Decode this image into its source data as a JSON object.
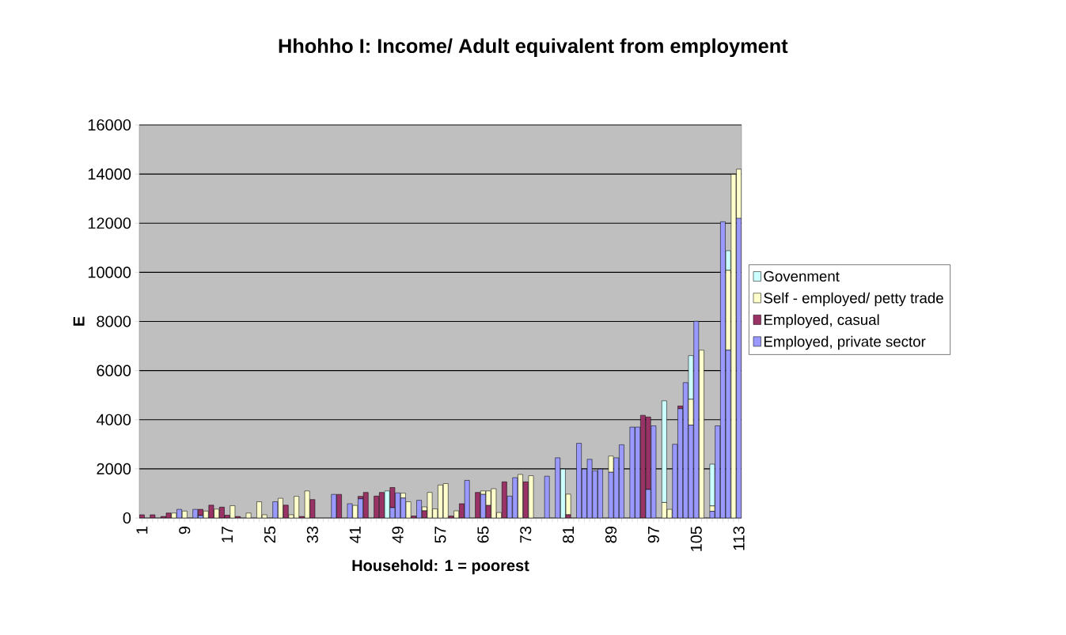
{
  "chart_data": {
    "type": "bar",
    "stacked": true,
    "title": "Hhohho I: Income/ Adult equivalent from employment",
    "xlabel": "Household: 1 = poorest",
    "ylabel": "E",
    "categories": [
      "1",
      null,
      null,
      null,
      null,
      null,
      null,
      null,
      "9",
      null,
      null,
      null,
      null,
      null,
      null,
      null,
      "17",
      null,
      null,
      null,
      null,
      null,
      null,
      null,
      "25",
      null,
      null,
      null,
      null,
      null,
      null,
      null,
      "33",
      null,
      null,
      null,
      null,
      null,
      null,
      null,
      "41",
      null,
      null,
      null,
      null,
      null,
      null,
      null,
      "49",
      null,
      null,
      null,
      null,
      null,
      null,
      null,
      "57",
      null,
      null,
      null,
      null,
      null,
      null,
      null,
      "65",
      null,
      null,
      null,
      null,
      null,
      null,
      null,
      "73",
      null,
      null,
      null,
      null,
      null,
      null,
      null,
      "81",
      null,
      null,
      null,
      null,
      null,
      null,
      null,
      "89",
      null,
      null,
      null,
      null,
      null,
      null,
      null,
      "97",
      null,
      null,
      null,
      null,
      null,
      null,
      null,
      "105",
      null,
      null,
      null,
      null,
      null,
      null,
      null,
      "113"
    ],
    "ylim": [
      0,
      16000
    ],
    "yticks": [
      0,
      2000,
      4000,
      6000,
      8000,
      10000,
      12000,
      14000,
      16000
    ],
    "grid": "y",
    "legend": "right",
    "series": [
      {
        "name": "Employed, private sector",
        "color": "#9999ff",
        "values": [
          0,
          0,
          0,
          0,
          0,
          0,
          0,
          350,
          0,
          0,
          350,
          100,
          0,
          0,
          0,
          0,
          0,
          0,
          0,
          0,
          0,
          0,
          0,
          0,
          0,
          660,
          0,
          0,
          0,
          0,
          0,
          0,
          0,
          0,
          0,
          0,
          960,
          0,
          0,
          580,
          0,
          780,
          0,
          0,
          0,
          0,
          0,
          420,
          1020,
          810,
          0,
          0,
          720,
          0,
          0,
          0,
          0,
          0,
          0,
          0,
          0,
          1530,
          0,
          0,
          960,
          0,
          0,
          0,
          0,
          890,
          1640,
          0,
          0,
          0,
          0,
          0,
          1700,
          0,
          2450,
          0,
          0,
          0,
          3040,
          1990,
          2390,
          1920,
          1990,
          0,
          1860,
          2450,
          2980,
          0,
          3700,
          3700,
          0,
          1160,
          3750,
          0,
          0,
          0,
          3000,
          4450,
          5510,
          3780,
          8010,
          0,
          0,
          270,
          3750,
          12060,
          6830,
          0,
          12200
        ]
      },
      {
        "name": "Employed, casual",
        "color": "#993366",
        "values": [
          130,
          0,
          130,
          0,
          60,
          200,
          0,
          0,
          0,
          0,
          0,
          250,
          0,
          520,
          0,
          440,
          110,
          0,
          60,
          0,
          0,
          0,
          0,
          0,
          0,
          0,
          0,
          520,
          0,
          0,
          60,
          0,
          750,
          0,
          0,
          0,
          0,
          960,
          0,
          0,
          0,
          100,
          1040,
          0,
          890,
          1040,
          0,
          820,
          0,
          0,
          0,
          80,
          0,
          290,
          0,
          0,
          0,
          0,
          80,
          0,
          580,
          0,
          0,
          1040,
          0,
          510,
          0,
          0,
          1470,
          0,
          0,
          0,
          1470,
          0,
          0,
          0,
          0,
          0,
          0,
          0,
          130,
          0,
          0,
          0,
          0,
          0,
          0,
          0,
          0,
          0,
          0,
          0,
          0,
          0,
          4180,
          2950,
          0,
          0,
          0,
          0,
          0,
          110,
          0,
          0,
          0,
          0,
          0,
          0,
          0,
          0,
          0,
          0,
          0
        ]
      },
      {
        "name": "Self - employed/ petty trade",
        "color": "#ffffcc",
        "values": [
          0,
          0,
          0,
          0,
          0,
          0,
          200,
          0,
          280,
          0,
          0,
          0,
          280,
          0,
          360,
          0,
          0,
          500,
          0,
          0,
          200,
          0,
          660,
          130,
          0,
          0,
          800,
          0,
          130,
          880,
          0,
          1100,
          0,
          0,
          0,
          0,
          0,
          0,
          0,
          0,
          510,
          0,
          0,
          0,
          0,
          0,
          0,
          0,
          0,
          200,
          660,
          0,
          0,
          160,
          1040,
          370,
          1340,
          1400,
          0,
          290,
          0,
          0,
          0,
          0,
          140,
          590,
          1190,
          220,
          0,
          0,
          0,
          1770,
          0,
          1720,
          0,
          0,
          0,
          0,
          0,
          0,
          840,
          0,
          0,
          0,
          0,
          0,
          0,
          0,
          660,
          0,
          0,
          0,
          0,
          0,
          0,
          0,
          0,
          0,
          630,
          350,
          0,
          0,
          0,
          1050,
          0,
          6830,
          0,
          220,
          0,
          0,
          3250,
          13990,
          2000
        ]
      },
      {
        "name": "Govenment",
        "color": "#ccffff",
        "values": [
          0,
          0,
          0,
          0,
          0,
          0,
          0,
          0,
          0,
          0,
          0,
          0,
          0,
          0,
          0,
          0,
          0,
          0,
          0,
          0,
          0,
          0,
          0,
          0,
          0,
          0,
          0,
          0,
          0,
          0,
          0,
          0,
          0,
          0,
          0,
          0,
          0,
          0,
          0,
          0,
          0,
          0,
          0,
          0,
          0,
          0,
          1100,
          0,
          0,
          0,
          0,
          0,
          0,
          0,
          0,
          0,
          0,
          0,
          0,
          0,
          0,
          0,
          0,
          0,
          0,
          0,
          0,
          0,
          0,
          0,
          0,
          0,
          0,
          0,
          0,
          0,
          0,
          0,
          0,
          1990,
          0,
          0,
          0,
          0,
          0,
          0,
          0,
          0,
          0,
          0,
          0,
          0,
          0,
          0,
          0,
          0,
          0,
          0,
          4140,
          0,
          0,
          0,
          0,
          1780,
          0,
          0,
          0,
          1700,
          0,
          0,
          800,
          0,
          0
        ]
      }
    ]
  }
}
